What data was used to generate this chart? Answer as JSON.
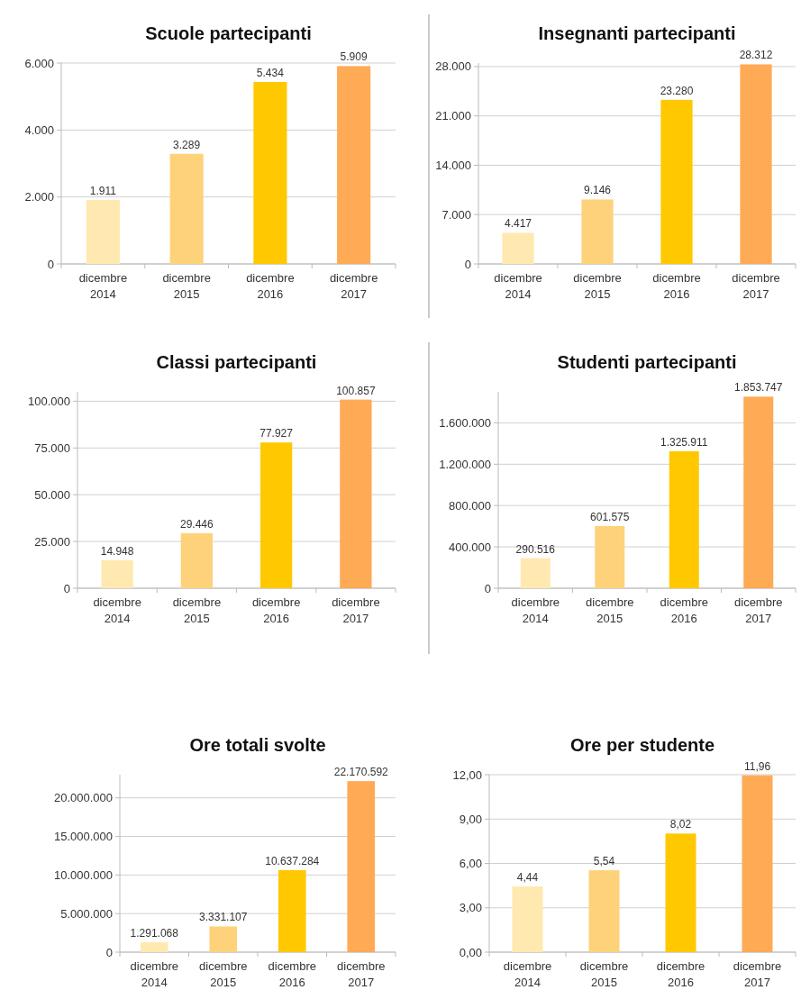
{
  "chart_data": [
    {
      "type": "bar",
      "title": "Scuole partecipanti",
      "categories": [
        "dicembre 2014",
        "dicembre 2015",
        "dicembre 2016",
        "dicembre 2017"
      ],
      "values": [
        1911,
        3289,
        5434,
        5909
      ],
      "colors": [
        "#ffe9b0",
        "#fed27a",
        "#ffc800",
        "#ffaa55"
      ],
      "value_labels": [
        "1.911",
        "3.289",
        "5.434",
        "5.909"
      ],
      "ylim": [
        0,
        6000
      ],
      "yticks": [
        {
          "value": 0,
          "label": "0"
        },
        {
          "value": 2000,
          "label": "2.000"
        },
        {
          "value": 4000,
          "label": "4.000"
        },
        {
          "value": 6000,
          "label": "6.000"
        }
      ],
      "grid": "y"
    },
    {
      "type": "bar",
      "title": "Insegnanti partecipanti",
      "categories": [
        "dicembre 2014",
        "dicembre 2015",
        "dicembre 2016",
        "dicembre 2017"
      ],
      "values": [
        4417,
        9146,
        23280,
        28312
      ],
      "colors": [
        "#ffe9b0",
        "#fed27a",
        "#ffc800",
        "#ffaa55"
      ],
      "value_labels": [
        "4.417",
        "9.146",
        "23.280",
        "28.312"
      ],
      "ylim": [
        0,
        28500
      ],
      "yticks": [
        {
          "value": 0,
          "label": "0"
        },
        {
          "value": 7000,
          "label": "7.000"
        },
        {
          "value": 14000,
          "label": "14.000"
        },
        {
          "value": 21000,
          "label": "21.000"
        },
        {
          "value": 28000,
          "label": "28.000"
        }
      ],
      "grid": "y"
    },
    {
      "type": "bar",
      "title": "Classi partecipanti",
      "categories": [
        "dicembre 2014",
        "dicembre 2015",
        "dicembre 2016",
        "dicembre 2017"
      ],
      "values": [
        14948,
        29446,
        77927,
        100857
      ],
      "colors": [
        "#ffe9b0",
        "#fed27a",
        "#ffc800",
        "#ffaa55"
      ],
      "value_labels": [
        "14.948",
        "29.446",
        "77.927",
        "100.857"
      ],
      "ylim": [
        0,
        105000
      ],
      "yticks": [
        {
          "value": 0,
          "label": "0"
        },
        {
          "value": 25000,
          "label": "25.000"
        },
        {
          "value": 50000,
          "label": "50.000"
        },
        {
          "value": 75000,
          "label": "75.000"
        },
        {
          "value": 100000,
          "label": "100.000"
        }
      ],
      "grid": "y"
    },
    {
      "type": "bar",
      "title": "Studenti partecipanti",
      "categories": [
        "dicembre 2014",
        "dicembre 2015",
        "dicembre 2016",
        "dicembre 2017"
      ],
      "values": [
        290516,
        601575,
        1325911,
        1853747
      ],
      "colors": [
        "#ffe9b0",
        "#fed27a",
        "#ffc800",
        "#ffaa55"
      ],
      "value_labels": [
        "290.516",
        "601.575",
        "1.325.911",
        "1.853.747"
      ],
      "ylim": [
        0,
        1900000
      ],
      "yticks": [
        {
          "value": 0,
          "label": "0"
        },
        {
          "value": 400000,
          "label": "400.000"
        },
        {
          "value": 800000,
          "label": "800.000"
        },
        {
          "value": 1200000,
          "label": "1.200.000"
        },
        {
          "value": 1600000,
          "label": "1.600.000"
        }
      ],
      "grid": "y"
    },
    {
      "type": "bar",
      "title": "Ore totali svolte",
      "categories": [
        "dicembre 2014",
        "dicembre 2015",
        "dicembre 2016",
        "dicembre 2017"
      ],
      "values": [
        1291068,
        3331107,
        10637284,
        22170592
      ],
      "colors": [
        "#ffe9b0",
        "#fed27a",
        "#ffc800",
        "#ffaa55"
      ],
      "value_labels": [
        "1.291.068",
        "3.331.107",
        "10.637.284",
        "22.170.592"
      ],
      "ylim": [
        0,
        23000000
      ],
      "yticks": [
        {
          "value": 0,
          "label": "0"
        },
        {
          "value": 5000000,
          "label": "5.000.000"
        },
        {
          "value": 10000000,
          "label": "10.000.000"
        },
        {
          "value": 15000000,
          "label": "15.000.000"
        },
        {
          "value": 20000000,
          "label": "20.000.000"
        }
      ],
      "grid": "y"
    },
    {
      "type": "bar",
      "title": "Ore per studente",
      "categories": [
        "dicembre 2014",
        "dicembre 2015",
        "dicembre 2016",
        "dicembre 2017"
      ],
      "values": [
        4.44,
        5.54,
        8.02,
        11.96
      ],
      "colors": [
        "#ffe9b0",
        "#fed27a",
        "#ffc800",
        "#ffaa55"
      ],
      "value_labels": [
        "4,44",
        "5,54",
        "8,02",
        "11,96"
      ],
      "ylim": [
        0,
        12
      ],
      "yticks": [
        {
          "value": 0,
          "label": "0,00"
        },
        {
          "value": 3,
          "label": "3,00"
        },
        {
          "value": 6,
          "label": "6,00"
        },
        {
          "value": 9,
          "label": "9,00"
        },
        {
          "value": 12,
          "label": "12,00"
        }
      ],
      "grid": "y"
    }
  ]
}
